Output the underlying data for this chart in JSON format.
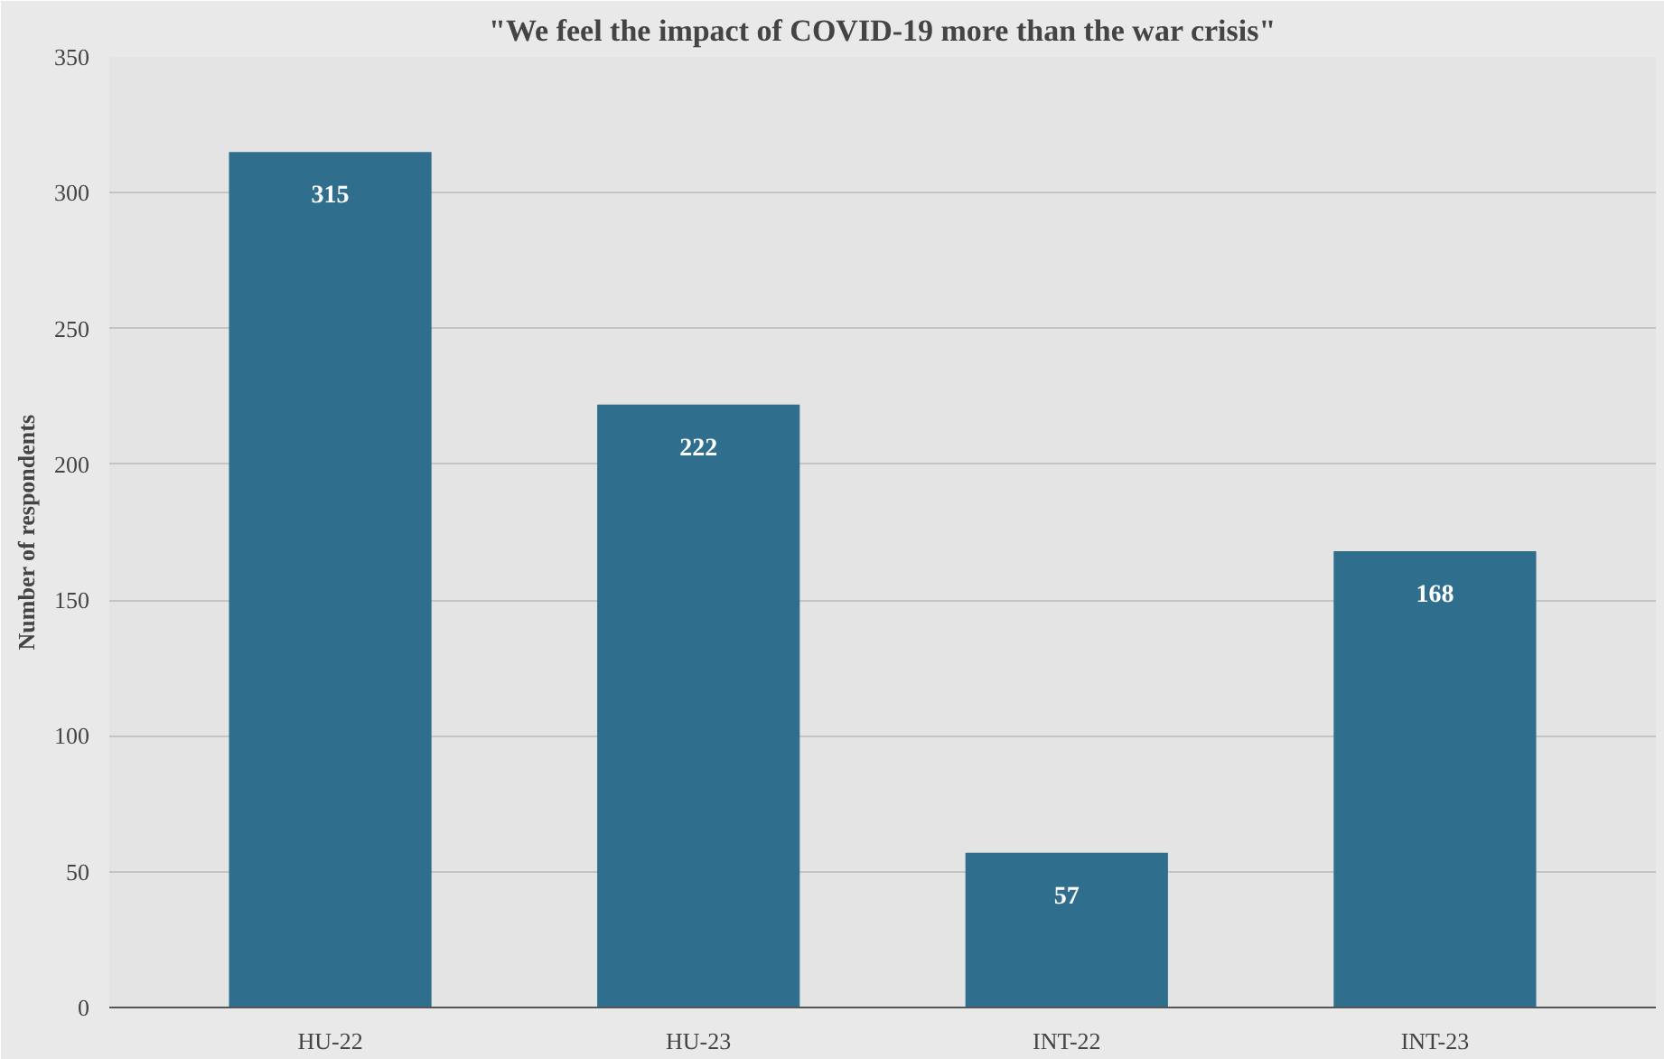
{
  "chart_data": {
    "type": "bar",
    "title": "\"We feel the impact of COVID-19 more than the war crisis\"",
    "ylabel": "Number of respondents",
    "categories": [
      "HU-22",
      "HU-23",
      "INT-22",
      "INT-23"
    ],
    "values": [
      315,
      222,
      57,
      168
    ],
    "color": "#2f6e8c",
    "ylim": [
      0,
      350
    ],
    "yticks": [
      0,
      50,
      100,
      150,
      200,
      250,
      300,
      350
    ],
    "grid": "y",
    "data_labels": true
  }
}
